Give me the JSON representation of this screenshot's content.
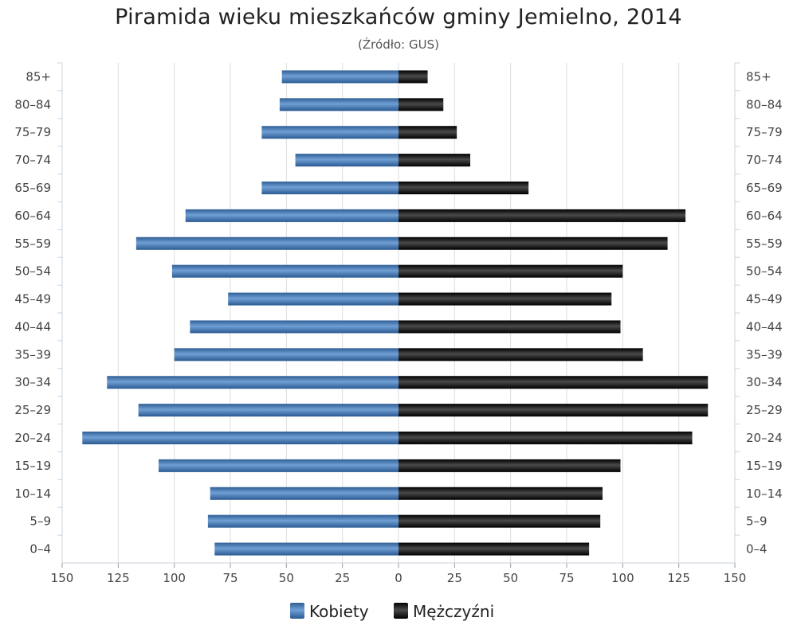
{
  "chart_data": {
    "type": "bar",
    "orientation": "horizontal-population-pyramid",
    "title": "Piramida wieku mieszkańców gminy Jemielno, 2014",
    "subtitle": "(Źródło: GUS)",
    "categories": [
      "0–4",
      "5–9",
      "10–14",
      "15–19",
      "20–24",
      "25–29",
      "30–34",
      "35–39",
      "40–44",
      "45–49",
      "50–54",
      "55–59",
      "60–64",
      "65–69",
      "70–74",
      "75–79",
      "80–84",
      "85+"
    ],
    "series": [
      {
        "name": "Kobiety",
        "side": "left",
        "color": "#3d6fa6",
        "values": [
          82,
          85,
          84,
          107,
          141,
          116,
          130,
          100,
          93,
          76,
          101,
          117,
          95,
          61,
          46,
          61,
          53,
          52
        ]
      },
      {
        "name": "Mężczyźni",
        "side": "right",
        "color": "#111111",
        "values": [
          85,
          90,
          91,
          99,
          131,
          138,
          138,
          109,
          99,
          95,
          100,
          120,
          128,
          58,
          32,
          26,
          20,
          13
        ]
      }
    ],
    "xlim": [
      -150,
      150
    ],
    "x_ticks": [
      150,
      125,
      100,
      75,
      50,
      25,
      0,
      25,
      50,
      75,
      100,
      125,
      150
    ],
    "grid": true,
    "legend_position": "bottom-center"
  }
}
